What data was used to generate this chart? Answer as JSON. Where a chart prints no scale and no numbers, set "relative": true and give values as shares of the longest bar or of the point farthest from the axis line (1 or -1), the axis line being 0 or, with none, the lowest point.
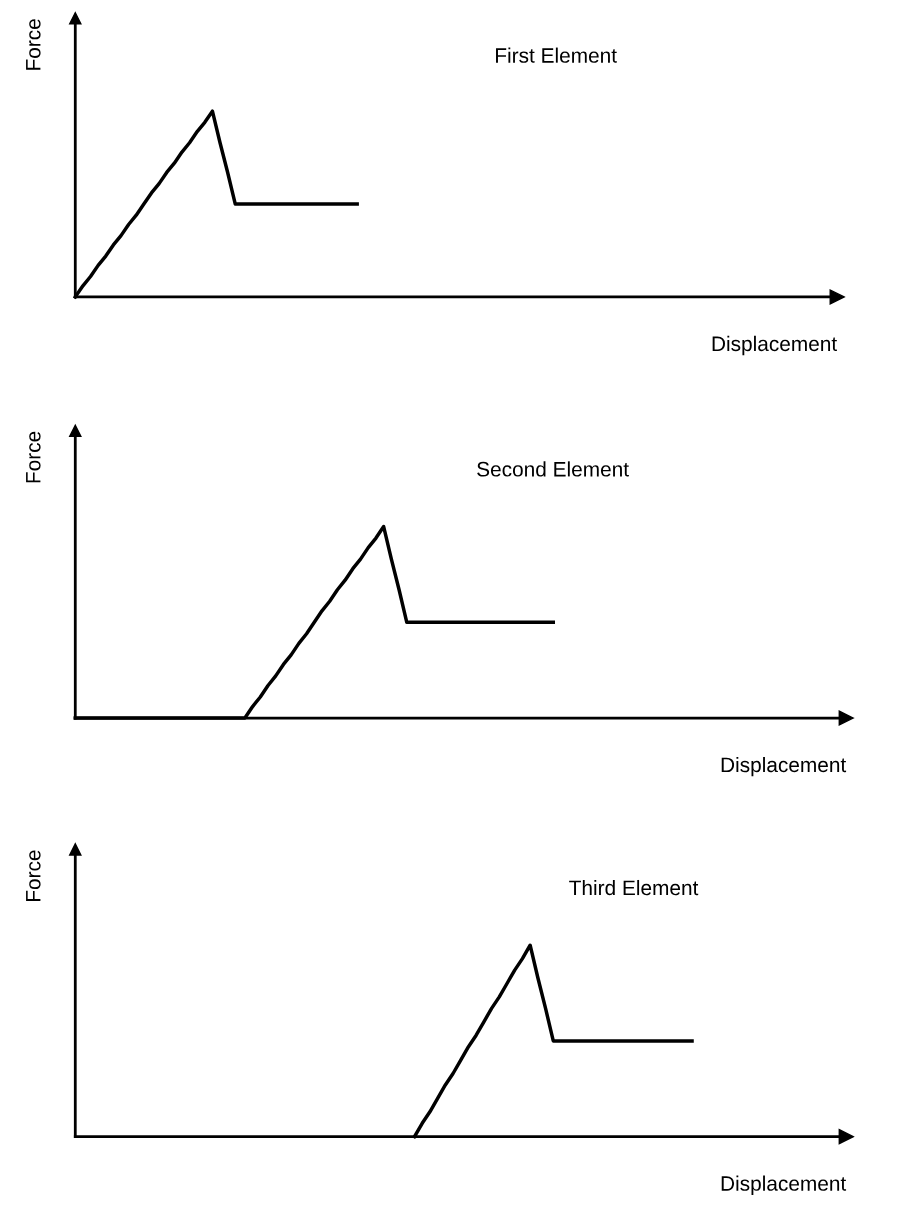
{
  "chart_data": [
    {
      "type": "line",
      "title": "First Element",
      "xlabel": "Displacement",
      "ylabel": "Force",
      "relative": true,
      "tick_labels": false,
      "categories": [
        null,
        null,
        null,
        null,
        null,
        null,
        null,
        null,
        null,
        null,
        null,
        null,
        null,
        null,
        null,
        null,
        null,
        null,
        null,
        null,
        null,
        null,
        null,
        null,
        null,
        null,
        null,
        null,
        null,
        null,
        null,
        null,
        null,
        null,
        null,
        null,
        null,
        null,
        null,
        null,
        null,
        null,
        null,
        null,
        null,
        null,
        null,
        null,
        null,
        null,
        null,
        null,
        null,
        null,
        null,
        null,
        null,
        null,
        null,
        null,
        null,
        null,
        null,
        null,
        null,
        null,
        null,
        null,
        null,
        null,
        null,
        null,
        null,
        null,
        null,
        null,
        null,
        null,
        null,
        null,
        null,
        null,
        null,
        null,
        null,
        null,
        null,
        null,
        null,
        null,
        null,
        null,
        null,
        null,
        null,
        null,
        null,
        null,
        null,
        null,
        null
      ],
      "series": [
        {
          "color": "#000000",
          "values": [
            0,
            0.06,
            0.11,
            0.17,
            0.22,
            0.28,
            0.33,
            0.39,
            0.44,
            0.5,
            0.56,
            0.61,
            0.67,
            0.72,
            0.78,
            0.83,
            0.89,
            0.94,
            1,
            0.83,
            0.67,
            0.5,
            0.5,
            0.5,
            0.5,
            0.5,
            0.5,
            0.5,
            0.5,
            0.5,
            0.5,
            0.5,
            0.5,
            0.5,
            0.5,
            0.5,
            0.5,
            0.5,
            null,
            null,
            null,
            null,
            null,
            null,
            null,
            null,
            null,
            null,
            null,
            null,
            null,
            null,
            null,
            null,
            null,
            null,
            null,
            null,
            null,
            null,
            null,
            null,
            null,
            null,
            null,
            null,
            null,
            null,
            null,
            null,
            null,
            null,
            null,
            null,
            null,
            null,
            null,
            null,
            null,
            null,
            null,
            null,
            null,
            null,
            null,
            null,
            null,
            null,
            null,
            null,
            null,
            null,
            null,
            null,
            null,
            null,
            null,
            null,
            null,
            null,
            null
          ]
        }
      ]
    },
    {
      "type": "line",
      "title": "Second Element",
      "xlabel": "Displacement",
      "ylabel": "Force",
      "relative": true,
      "tick_labels": false,
      "categories": [
        null,
        null,
        null,
        null,
        null,
        null,
        null,
        null,
        null,
        null,
        null,
        null,
        null,
        null,
        null,
        null,
        null,
        null,
        null,
        null,
        null,
        null,
        null,
        null,
        null,
        null,
        null,
        null,
        null,
        null,
        null,
        null,
        null,
        null,
        null,
        null,
        null,
        null,
        null,
        null,
        null,
        null,
        null,
        null,
        null,
        null,
        null,
        null,
        null,
        null,
        null,
        null,
        null,
        null,
        null,
        null,
        null,
        null,
        null,
        null,
        null,
        null,
        null,
        null,
        null,
        null,
        null,
        null,
        null,
        null,
        null,
        null,
        null,
        null,
        null,
        null,
        null,
        null,
        null,
        null,
        null,
        null,
        null,
        null,
        null,
        null,
        null,
        null,
        null,
        null,
        null,
        null,
        null,
        null,
        null,
        null,
        null,
        null,
        null,
        null,
        null
      ],
      "series": [
        {
          "color": "#000000",
          "values": [
            0,
            0,
            0,
            0,
            0,
            0,
            0,
            0,
            0,
            0,
            0,
            0,
            0,
            0,
            0,
            0,
            0,
            0,
            0,
            0,
            0,
            0,
            0,
            0.06,
            0.11,
            0.17,
            0.22,
            0.28,
            0.33,
            0.39,
            0.44,
            0.5,
            0.56,
            0.61,
            0.67,
            0.72,
            0.78,
            0.83,
            0.89,
            0.94,
            1,
            0.83,
            0.67,
            0.5,
            0.5,
            0.5,
            0.5,
            0.5,
            0.5,
            0.5,
            0.5,
            0.5,
            0.5,
            0.5,
            0.5,
            0.5,
            0.5,
            0.5,
            0.5,
            0.5,
            0.5,
            0.5,
            0.5,
            null,
            null,
            null,
            null,
            null,
            null,
            null,
            null,
            null,
            null,
            null,
            null,
            null,
            null,
            null,
            null,
            null,
            null,
            null,
            null,
            null,
            null,
            null,
            null,
            null,
            null,
            null,
            null,
            null,
            null,
            null,
            null,
            null,
            null,
            null,
            null,
            null,
            null
          ]
        }
      ]
    },
    {
      "type": "line",
      "title": "Third Element",
      "xlabel": "Displacement",
      "ylabel": "Force",
      "relative": true,
      "tick_labels": false,
      "categories": [
        null,
        null,
        null,
        null,
        null,
        null,
        null,
        null,
        null,
        null,
        null,
        null,
        null,
        null,
        null,
        null,
        null,
        null,
        null,
        null,
        null,
        null,
        null,
        null,
        null,
        null,
        null,
        null,
        null,
        null,
        null,
        null,
        null,
        null,
        null,
        null,
        null,
        null,
        null,
        null,
        null,
        null,
        null,
        null,
        null,
        null,
        null,
        null,
        null,
        null,
        null,
        null,
        null,
        null,
        null,
        null,
        null,
        null,
        null,
        null,
        null,
        null,
        null,
        null,
        null,
        null,
        null,
        null,
        null,
        null,
        null,
        null,
        null,
        null,
        null,
        null,
        null,
        null,
        null,
        null,
        null,
        null,
        null,
        null,
        null,
        null,
        null,
        null,
        null,
        null,
        null,
        null,
        null,
        null,
        null,
        null,
        null,
        null,
        null,
        null,
        null
      ],
      "series": [
        {
          "color": "#000000",
          "values": [
            null,
            null,
            null,
            null,
            null,
            null,
            null,
            null,
            null,
            null,
            null,
            null,
            null,
            null,
            null,
            null,
            null,
            null,
            null,
            null,
            null,
            null,
            null,
            null,
            null,
            null,
            null,
            null,
            null,
            null,
            null,
            null,
            null,
            null,
            null,
            null,
            null,
            null,
            null,
            null,
            null,
            null,
            null,
            null,
            0,
            0.07,
            0.13,
            0.2,
            0.27,
            0.33,
            0.4,
            0.47,
            0.53,
            0.6,
            0.67,
            0.73,
            0.8,
            0.87,
            0.93,
            1,
            0.83,
            0.67,
            0.5,
            0.5,
            0.5,
            0.5,
            0.5,
            0.5,
            0.5,
            0.5,
            0.5,
            0.5,
            0.5,
            0.5,
            0.5,
            0.5,
            0.5,
            0.5,
            0.5,
            0.5,
            0.5,
            null,
            null,
            null,
            null,
            null,
            null,
            null,
            null,
            null,
            null,
            null,
            null,
            null,
            null,
            null,
            null,
            null,
            null,
            null,
            null
          ]
        }
      ]
    }
  ]
}
